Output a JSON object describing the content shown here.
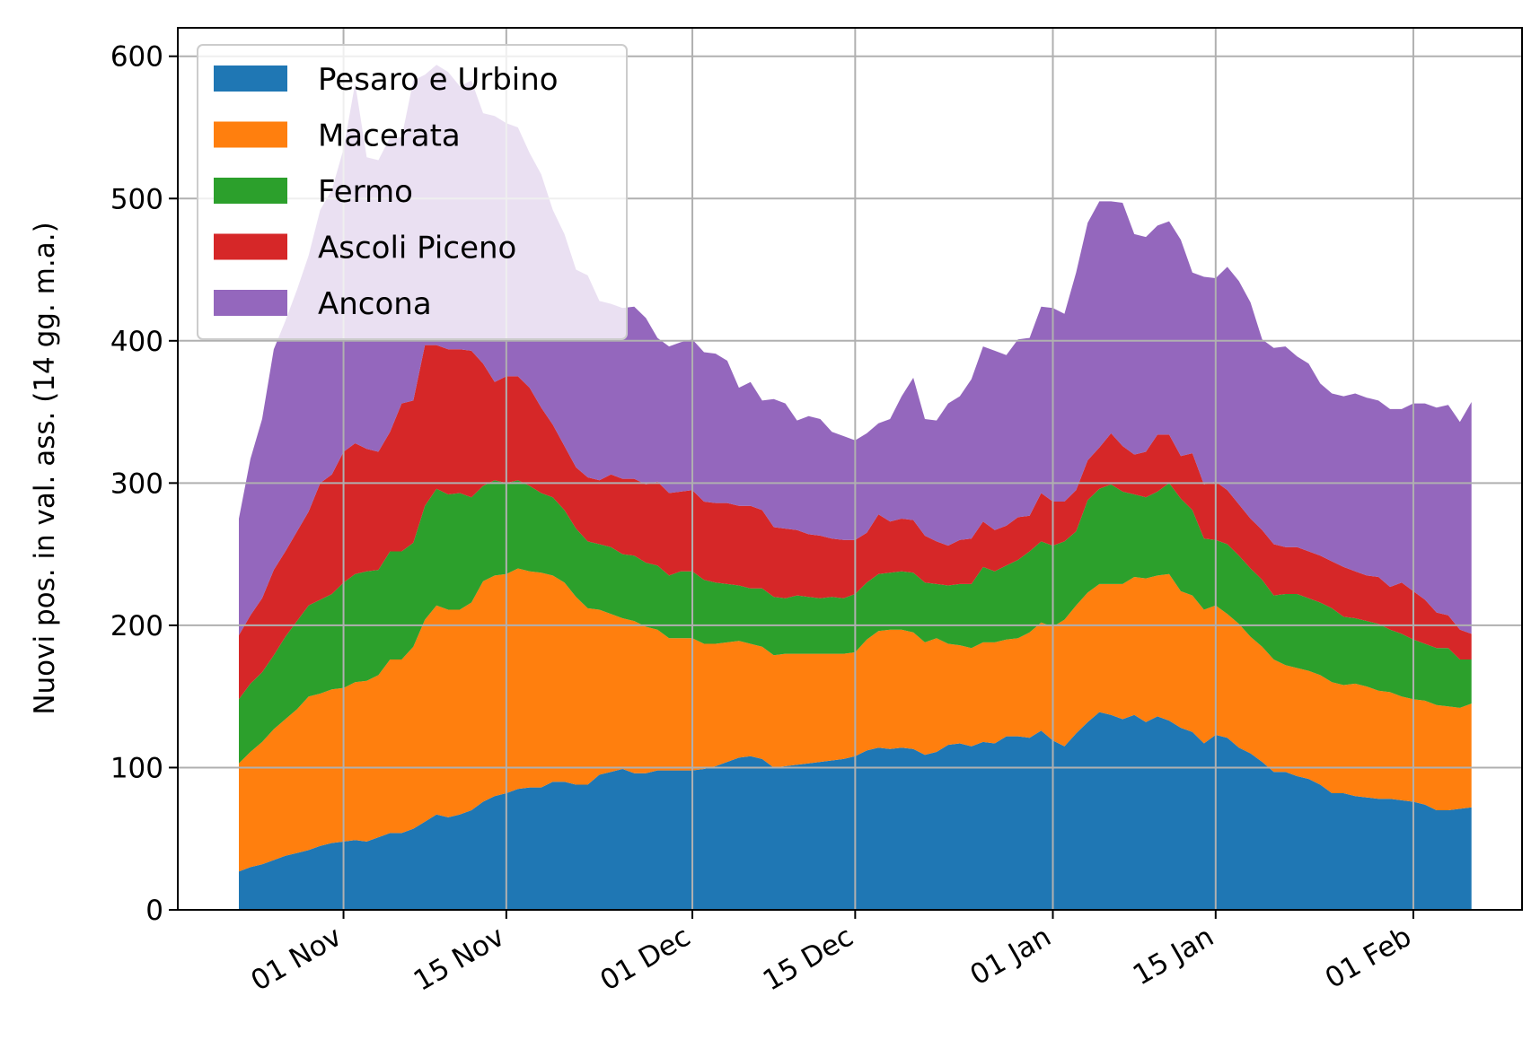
{
  "chart_data": {
    "type": "area",
    "stacked": true,
    "title": "",
    "xlabel": "",
    "ylabel": "Nuovi pos. in val. ass. (14 gg. m.a.)",
    "x_start": "2020-10-23",
    "x_end": "2021-02-08",
    "xticks": [
      {
        "date": "2020-11-01",
        "label": "01 Nov"
      },
      {
        "date": "2020-11-15",
        "label": "15 Nov"
      },
      {
        "date": "2020-12-01",
        "label": "01 Dec"
      },
      {
        "date": "2020-12-15",
        "label": "15 Dec"
      },
      {
        "date": "2021-01-01",
        "label": "01 Jan"
      },
      {
        "date": "2021-01-15",
        "label": "15 Jan"
      },
      {
        "date": "2021-02-01",
        "label": "01 Feb"
      }
    ],
    "ylim": [
      0,
      620
    ],
    "yticks": [
      0,
      100,
      200,
      300,
      400,
      500,
      600
    ],
    "grid": true,
    "legend_position": "top-left",
    "series": [
      {
        "name": "Pesaro e Urbino",
        "color": "#1f77b4",
        "values": [
          27,
          30,
          32,
          35,
          38,
          40,
          42,
          45,
          47,
          48,
          49,
          48,
          51,
          54,
          54,
          57,
          62,
          67,
          65,
          67,
          70,
          76,
          80,
          82,
          85,
          86,
          86,
          90,
          90,
          88,
          88,
          95,
          97,
          99,
          96,
          96,
          98,
          98,
          98,
          98,
          99,
          101,
          104,
          107,
          108,
          106,
          100,
          101,
          102,
          103,
          104,
          105,
          106,
          108,
          112,
          114,
          113,
          114,
          113,
          109,
          111,
          116,
          117,
          115,
          118,
          117,
          122,
          122,
          121,
          126,
          119,
          115,
          124,
          132,
          139,
          137,
          134,
          137,
          132,
          136,
          133,
          128,
          125,
          117,
          123,
          121,
          114,
          110,
          104,
          97,
          97,
          94,
          92,
          88,
          82,
          82,
          80,
          79,
          78,
          78,
          77,
          76,
          74,
          70,
          70,
          71,
          72
        ]
      },
      {
        "name": "Macerata",
        "color": "#ff7f0e",
        "values": [
          76,
          81,
          86,
          92,
          96,
          101,
          108,
          107,
          108,
          108,
          111,
          113,
          114,
          122,
          122,
          128,
          142,
          147,
          146,
          144,
          146,
          155,
          155,
          154,
          155,
          152,
          151,
          145,
          140,
          132,
          124,
          116,
          111,
          106,
          107,
          103,
          99,
          93,
          93,
          93,
          88,
          86,
          84,
          82,
          79,
          79,
          79,
          79,
          78,
          77,
          76,
          75,
          74,
          73,
          78,
          82,
          84,
          83,
          82,
          79,
          80,
          71,
          69,
          69,
          70,
          71,
          68,
          69,
          74,
          76,
          80,
          89,
          90,
          91,
          90,
          92,
          95,
          97,
          101,
          99,
          103,
          96,
          96,
          94,
          91,
          87,
          87,
          82,
          81,
          79,
          75,
          76,
          76,
          77,
          78,
          76,
          79,
          78,
          76,
          75,
          73,
          72,
          73,
          74,
          73,
          71,
          73
        ]
      },
      {
        "name": "Fermo",
        "color": "#2ca02c",
        "values": [
          45,
          48,
          49,
          52,
          58,
          62,
          64,
          66,
          67,
          74,
          76,
          77,
          74,
          76,
          76,
          73,
          80,
          82,
          81,
          82,
          74,
          67,
          67,
          64,
          62,
          60,
          56,
          55,
          51,
          48,
          47,
          46,
          47,
          45,
          46,
          45,
          45,
          44,
          47,
          47,
          45,
          43,
          41,
          39,
          39,
          41,
          41,
          39,
          41,
          40,
          39,
          40,
          39,
          41,
          40,
          40,
          40,
          41,
          42,
          42,
          38,
          41,
          43,
          45,
          53,
          50,
          52,
          55,
          57,
          57,
          57,
          55,
          52,
          65,
          67,
          70,
          65,
          58,
          57,
          59,
          64,
          65,
          60,
          50,
          46,
          49,
          48,
          48,
          47,
          45,
          50,
          52,
          51,
          51,
          52,
          48,
          46,
          46,
          47,
          44,
          44,
          42,
          40,
          40,
          41,
          34,
          31
        ]
      },
      {
        "name": "Ascoli Piceno",
        "color": "#d62728",
        "values": [
          45,
          48,
          52,
          60,
          60,
          63,
          66,
          82,
          84,
          92,
          92,
          86,
          83,
          84,
          104,
          100,
          113,
          101,
          102,
          101,
          103,
          86,
          69,
          75,
          73,
          69,
          60,
          51,
          45,
          43,
          45,
          45,
          51,
          53,
          54,
          55,
          59,
          58,
          56,
          57,
          55,
          56,
          57,
          56,
          58,
          55,
          49,
          49,
          46,
          44,
          44,
          41,
          41,
          38,
          35,
          42,
          36,
          37,
          37,
          33,
          30,
          28,
          31,
          32,
          32,
          29,
          28,
          30,
          25,
          34,
          31,
          28,
          29,
          28,
          29,
          36,
          32,
          28,
          32,
          40,
          34,
          30,
          40,
          38,
          41,
          38,
          36,
          35,
          35,
          36,
          33,
          33,
          33,
          33,
          33,
          35,
          33,
          32,
          33,
          30,
          36,
          34,
          31,
          25,
          23,
          21,
          18
        ]
      },
      {
        "name": "Ancona",
        "color": "#9467bd",
        "values": [
          82,
          110,
          126,
          155,
          162,
          170,
          180,
          192,
          200,
          213,
          253,
          205,
          205,
          207,
          187,
          225,
          190,
          197,
          195,
          185,
          190,
          176,
          187,
          178,
          175,
          165,
          164,
          151,
          149,
          139,
          142,
          126,
          120,
          120,
          121,
          117,
          101,
          103,
          105,
          106,
          105,
          105,
          100,
          83,
          87,
          77,
          90,
          88,
          77,
          83,
          82,
          75,
          73,
          70,
          70,
          64,
          72,
          86,
          100,
          82,
          85,
          100,
          101,
          112,
          123,
          126,
          120,
          125,
          125,
          131,
          136,
          132,
          153,
          167,
          173,
          163,
          171,
          155,
          151,
          147,
          150,
          152,
          127,
          146,
          143,
          157,
          157,
          152,
          134,
          138,
          141,
          134,
          132,
          121,
          118,
          120,
          125,
          125,
          124,
          125,
          122,
          132,
          138,
          144,
          148,
          146,
          163
        ]
      }
    ]
  }
}
